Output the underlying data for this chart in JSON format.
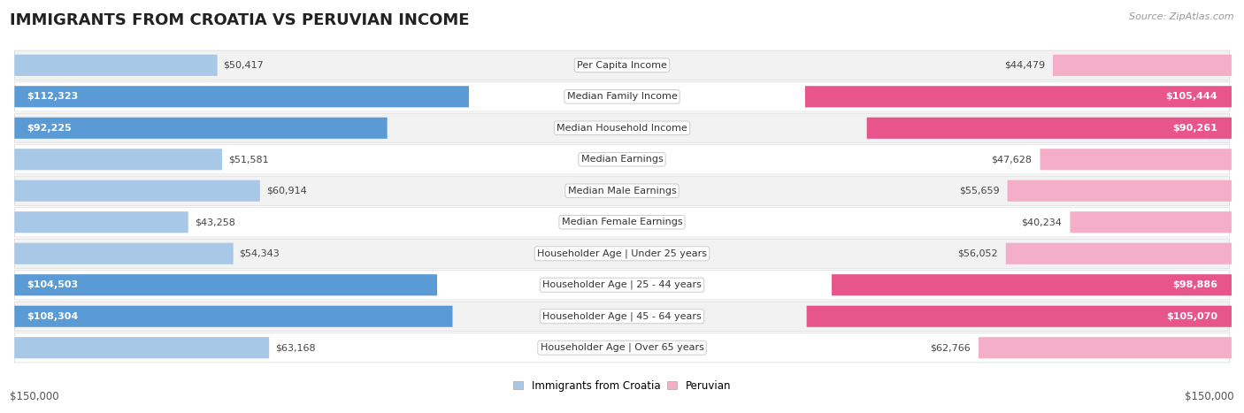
{
  "title": "IMMIGRANTS FROM CROATIA VS PERUVIAN INCOME",
  "source": "Source: ZipAtlas.com",
  "categories": [
    "Per Capita Income",
    "Median Family Income",
    "Median Household Income",
    "Median Earnings",
    "Median Male Earnings",
    "Median Female Earnings",
    "Householder Age | Under 25 years",
    "Householder Age | 25 - 44 years",
    "Householder Age | 45 - 64 years",
    "Householder Age | Over 65 years"
  ],
  "croatia_values": [
    50417,
    112323,
    92225,
    51581,
    60914,
    43258,
    54343,
    104503,
    108304,
    63168
  ],
  "peruvian_values": [
    44479,
    105444,
    90261,
    47628,
    55659,
    40234,
    56052,
    98886,
    105070,
    62766
  ],
  "croatia_labels": [
    "$50,417",
    "$112,323",
    "$92,225",
    "$51,581",
    "$60,914",
    "$43,258",
    "$54,343",
    "$104,503",
    "$108,304",
    "$63,168"
  ],
  "peruvian_labels": [
    "$44,479",
    "$105,444",
    "$90,261",
    "$47,628",
    "$55,659",
    "$40,234",
    "$56,052",
    "$98,886",
    "$105,070",
    "$62,766"
  ],
  "croatia_color_light": "#a8c8e8",
  "croatia_color_dark": "#5b9bd5",
  "peruvian_color_light": "#f4aec8",
  "peruvian_color_dark": "#e8558a",
  "max_value": 150000,
  "row_bg_odd": "#f2f2f2",
  "row_bg_even": "#ffffff",
  "legend_croatia": "Immigrants from Croatia",
  "legend_peruvian": "Peruvian",
  "xlabel_left": "$150,000",
  "xlabel_right": "$150,000",
  "title_fontsize": 13,
  "label_fontsize": 8,
  "category_fontsize": 8,
  "source_fontsize": 8,
  "inside_threshold": 75000
}
